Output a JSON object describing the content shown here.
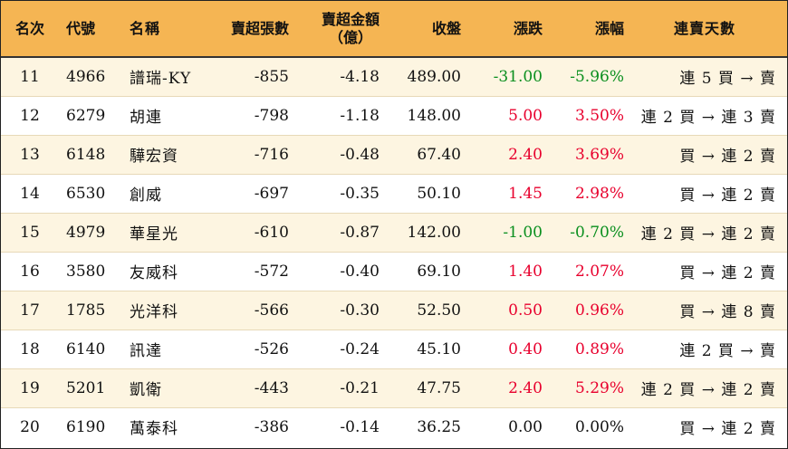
{
  "headers": {
    "rank": "名次",
    "code": "代號",
    "name": "名稱",
    "sell_lots": "賣超張數",
    "sell_amount_line1": "賣超金額",
    "sell_amount_line2": "（億）",
    "close": "收盤",
    "change": "漲跌",
    "pct": "漲幅",
    "streak": "連賣天數"
  },
  "colors": {
    "header_bg": "#f5b553",
    "row_alt_bg": "#fdf5e1",
    "up": "#e8002d",
    "down": "#0a8f1e"
  },
  "rows": [
    {
      "rank": "11",
      "code": "4966",
      "name": "譜瑞-KY",
      "sell_lots": "-855",
      "sell_amount": "-4.18",
      "close": "489.00",
      "change": "-31.00",
      "pct": "-5.96%",
      "streak": "連 5 買 → 賣",
      "dir": "down"
    },
    {
      "rank": "12",
      "code": "6279",
      "name": "胡連",
      "sell_lots": "-798",
      "sell_amount": "-1.18",
      "close": "148.00",
      "change": "5.00",
      "pct": "3.50%",
      "streak": "連 2 買 → 連 3 賣",
      "dir": "up"
    },
    {
      "rank": "13",
      "code": "6148",
      "name": "驊宏資",
      "sell_lots": "-716",
      "sell_amount": "-0.48",
      "close": "67.40",
      "change": "2.40",
      "pct": "3.69%",
      "streak": "買 → 連 2 賣",
      "dir": "up"
    },
    {
      "rank": "14",
      "code": "6530",
      "name": "創威",
      "sell_lots": "-697",
      "sell_amount": "-0.35",
      "close": "50.10",
      "change": "1.45",
      "pct": "2.98%",
      "streak": "買 → 連 2 賣",
      "dir": "up"
    },
    {
      "rank": "15",
      "code": "4979",
      "name": "華星光",
      "sell_lots": "-610",
      "sell_amount": "-0.87",
      "close": "142.00",
      "change": "-1.00",
      "pct": "-0.70%",
      "streak": "連 2 買 → 連 2 賣",
      "dir": "down"
    },
    {
      "rank": "16",
      "code": "3580",
      "name": "友威科",
      "sell_lots": "-572",
      "sell_amount": "-0.40",
      "close": "69.10",
      "change": "1.40",
      "pct": "2.07%",
      "streak": "買 → 連 2 賣",
      "dir": "up"
    },
    {
      "rank": "17",
      "code": "1785",
      "name": "光洋科",
      "sell_lots": "-566",
      "sell_amount": "-0.30",
      "close": "52.50",
      "change": "0.50",
      "pct": "0.96%",
      "streak": "買 → 連 8 賣",
      "dir": "up"
    },
    {
      "rank": "18",
      "code": "6140",
      "name": "訊達",
      "sell_lots": "-526",
      "sell_amount": "-0.24",
      "close": "45.10",
      "change": "0.40",
      "pct": "0.89%",
      "streak": "連 2 買 → 賣",
      "dir": "up"
    },
    {
      "rank": "19",
      "code": "5201",
      "name": "凱衛",
      "sell_lots": "-443",
      "sell_amount": "-0.21",
      "close": "47.75",
      "change": "2.40",
      "pct": "5.29%",
      "streak": "連 2 買 → 連 2 賣",
      "dir": "up"
    },
    {
      "rank": "20",
      "code": "6190",
      "name": "萬泰科",
      "sell_lots": "-386",
      "sell_amount": "-0.14",
      "close": "36.25",
      "change": "0.00",
      "pct": "0.00%",
      "streak": "買 → 連 2 賣",
      "dir": "flat"
    }
  ]
}
